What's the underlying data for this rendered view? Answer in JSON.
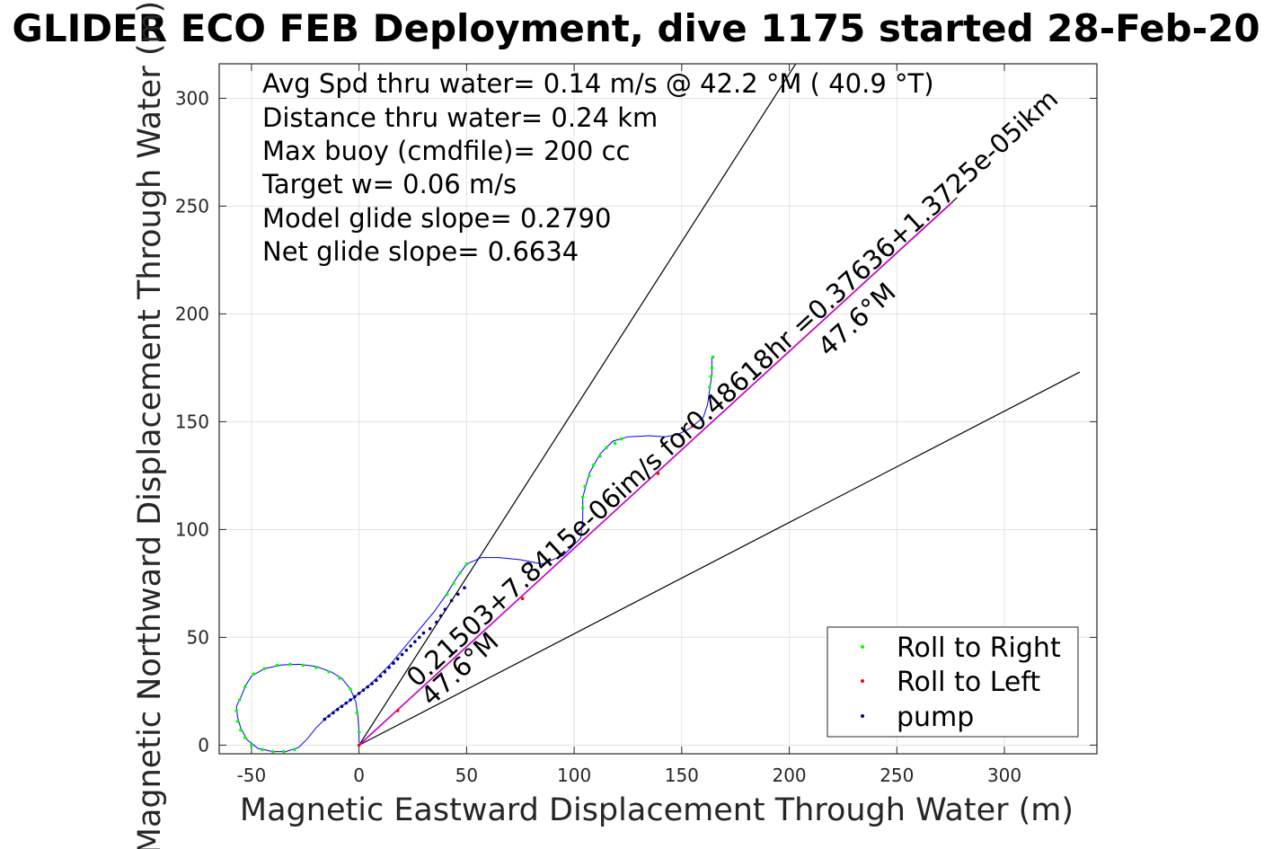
{
  "chart_data": {
    "type": "scatter",
    "title": "GLIDER ECO FEB Deployment, dive 1175 started 28-Feb-20",
    "xlabel": "Magnetic Eastward Displacement Through Water (m)",
    "ylabel": "Magnetic Northward Displacement Through Water (m)",
    "xlim": [
      -65,
      343
    ],
    "ylim": [
      -4,
      316
    ],
    "xticks": [
      -50,
      0,
      50,
      100,
      150,
      200,
      250,
      300
    ],
    "yticks": [
      0,
      50,
      100,
      150,
      200,
      250,
      300
    ],
    "xtick_labels": [
      "-50",
      "0",
      "50",
      "100",
      "150",
      "200",
      "250",
      "300"
    ],
    "ytick_labels": [
      "0",
      "50",
      "100",
      "150",
      "200",
      "250",
      "300"
    ],
    "grid": true,
    "legend_position": "bottom-right",
    "info_lines": [
      "Avg Spd thru water=  0.14 m/s @  42.2 °M ( 40.9 °T)",
      "Distance thru water=  0.24 km",
      "Max buoy (cmdfile)= 200 cc",
      "Target w= 0.06 m/s",
      "Model glide slope= 0.2790",
      "Net glide slope= 0.6634"
    ],
    "annotations": {
      "current_label": "0.21503+7.8415e-06im/s for0.48618hr =0.37636+1.3725e-05ikm",
      "heading_label_far": "47.6°M",
      "heading_label_near": "47.6°M"
    },
    "legend": [
      {
        "label": "Roll to Right",
        "color": "#00ff00"
      },
      {
        "label": "Roll to Left",
        "color": "#ff0000"
      },
      {
        "label": "pump",
        "color": "#000080"
      }
    ],
    "colors": {
      "track": "#0000ff",
      "roll_right": "#00ff00",
      "roll_left": "#ff0000",
      "pump": "#000080",
      "current": "#cc00cc",
      "cone": "#000000"
    },
    "reference_lines": [
      {
        "name": "cone-upper",
        "from": [
          0,
          0
        ],
        "to": [
          203,
          316
        ]
      },
      {
        "name": "cone-lower",
        "from": [
          0,
          0
        ],
        "to": [
          335,
          173
        ]
      },
      {
        "name": "heading",
        "from": [
          0,
          0
        ],
        "to": [
          278,
          254
        ]
      }
    ],
    "current_vector": {
      "from": [
        0,
        0
      ],
      "to": [
        276,
        252
      ]
    },
    "track": [
      [
        0,
        1
      ],
      [
        0,
        6
      ],
      [
        -0.5,
        13
      ],
      [
        -1.5,
        20
      ],
      [
        -4,
        26
      ],
      [
        -8,
        31
      ],
      [
        -13,
        34
      ],
      [
        -20,
        36.5
      ],
      [
        -28,
        37.5
      ],
      [
        -36,
        37.2
      ],
      [
        -44,
        35.5
      ],
      [
        -50,
        32
      ],
      [
        -52.5,
        28
      ],
      [
        -55,
        22
      ],
      [
        -57,
        18
      ],
      [
        -56.5,
        13
      ],
      [
        -55,
        8
      ],
      [
        -52,
        2.5
      ],
      [
        -47,
        -1.5
      ],
      [
        -40,
        -3
      ],
      [
        -34,
        -3
      ],
      [
        -28,
        -1
      ],
      [
        -24,
        3
      ],
      [
        -20,
        8
      ],
      [
        -15,
        13
      ],
      [
        -10,
        17
      ],
      [
        -5,
        20
      ],
      [
        0,
        24
      ],
      [
        5,
        28
      ],
      [
        10,
        33
      ],
      [
        15,
        38
      ],
      [
        20,
        44
      ],
      [
        25,
        50
      ],
      [
        30,
        56
      ],
      [
        35,
        62
      ],
      [
        40,
        69
      ],
      [
        45,
        77
      ],
      [
        50,
        84
      ],
      [
        57,
        87
      ],
      [
        65,
        87
      ],
      [
        75,
        86
      ],
      [
        85,
        84
      ],
      [
        95,
        88
      ],
      [
        103,
        96
      ],
      [
        104,
        105
      ],
      [
        104,
        115
      ],
      [
        107,
        126
      ],
      [
        112,
        135
      ],
      [
        118,
        141
      ],
      [
        125,
        143
      ],
      [
        135,
        143.5
      ],
      [
        142,
        143
      ],
      [
        148,
        144
      ],
      [
        154,
        147
      ],
      [
        160,
        152
      ],
      [
        162,
        158
      ],
      [
        163,
        165
      ],
      [
        164,
        172
      ],
      [
        164,
        180
      ]
    ],
    "roll_right_points": [
      [
        0,
        6
      ],
      [
        -1,
        15
      ],
      [
        -4,
        26
      ],
      [
        -9,
        31
      ],
      [
        -14,
        34
      ],
      [
        -20,
        36
      ],
      [
        -26,
        37
      ],
      [
        -32,
        37.5
      ],
      [
        -38,
        37
      ],
      [
        -44,
        35.5
      ],
      [
        -49,
        33
      ],
      [
        -53,
        27
      ],
      [
        -55.5,
        21
      ],
      [
        -57,
        16
      ],
      [
        -56.5,
        11
      ],
      [
        -55,
        7
      ],
      [
        -53,
        3.5
      ],
      [
        -50,
        0
      ],
      [
        -45,
        -2
      ],
      [
        -40,
        -3
      ],
      [
        -35,
        -3
      ],
      [
        -30,
        -2
      ],
      [
        41,
        70
      ],
      [
        44,
        75
      ],
      [
        47,
        80
      ],
      [
        50,
        84
      ],
      [
        104,
        110
      ],
      [
        104,
        115
      ],
      [
        105,
        120
      ],
      [
        107,
        125
      ],
      [
        109,
        130
      ],
      [
        112,
        134
      ],
      [
        115,
        138
      ],
      [
        119,
        140
      ],
      [
        122,
        142
      ],
      [
        163,
        166
      ],
      [
        163.5,
        171
      ],
      [
        164,
        175
      ],
      [
        164.5,
        180
      ]
    ],
    "roll_left_points": [
      [
        0,
        0
      ],
      [
        18,
        16
      ],
      [
        76,
        68
      ],
      [
        139,
        126
      ],
      [
        150,
        143
      ],
      [
        155,
        148
      ]
    ],
    "pump_points": [
      [
        -16,
        12
      ],
      [
        -14,
        13.5
      ],
      [
        -12,
        15
      ],
      [
        -10,
        16.5
      ],
      [
        -8,
        18
      ],
      [
        -6,
        19.5
      ],
      [
        -4,
        21
      ],
      [
        -2,
        22.5
      ],
      [
        0,
        24
      ],
      [
        2,
        25.5
      ],
      [
        4,
        27
      ],
      [
        6,
        28.5
      ],
      [
        8,
        30
      ],
      [
        10,
        32
      ],
      [
        12,
        34
      ],
      [
        14,
        36
      ],
      [
        16,
        38
      ],
      [
        18,
        40
      ],
      [
        20,
        42
      ],
      [
        22,
        44
      ],
      [
        24,
        46
      ],
      [
        26,
        48
      ],
      [
        28,
        50
      ],
      [
        30,
        52
      ],
      [
        33,
        54
      ],
      [
        36,
        57
      ],
      [
        38,
        60
      ],
      [
        40,
        63
      ],
      [
        43,
        67
      ],
      [
        46,
        70
      ],
      [
        49,
        73
      ]
    ]
  }
}
